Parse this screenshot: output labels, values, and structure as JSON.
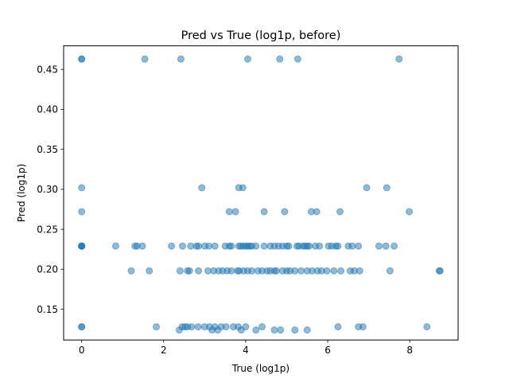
{
  "chart_data": {
    "type": "scatter",
    "title": "Pred vs True (log1p, before)",
    "xlabel": "True (log1p)",
    "ylabel": "Pred (log1p)",
    "xlim": [
      -0.44,
      9.18
    ],
    "ylim": [
      0.1115,
      0.4795
    ],
    "x_ticks": [
      0,
      2,
      4,
      6,
      8
    ],
    "x_tick_labels": [
      "0",
      "2",
      "4",
      "6",
      "8"
    ],
    "y_ticks": [
      0.15,
      0.2,
      0.25,
      0.3,
      0.35,
      0.4,
      0.45
    ],
    "y_tick_labels": [
      "0.15",
      "0.20",
      "0.25",
      "0.30",
      "0.35",
      "0.40",
      "0.45"
    ],
    "grid": false,
    "marker_color": "#1f77b4",
    "marker_alpha": 0.5,
    "series": [
      {
        "points": [
          [
            0,
            0.463
          ],
          [
            0,
            0.463
          ],
          [
            1.54,
            0.463
          ],
          [
            2.42,
            0.463
          ],
          [
            4.05,
            0.463
          ],
          [
            4.83,
            0.463
          ],
          [
            5.27,
            0.463
          ],
          [
            7.74,
            0.463
          ],
          [
            0,
            0.302
          ],
          [
            2.93,
            0.302
          ],
          [
            3.83,
            0.302
          ],
          [
            3.93,
            0.302
          ],
          [
            6.95,
            0.302
          ],
          [
            7.44,
            0.302
          ],
          [
            0,
            0.272
          ],
          [
            3.6,
            0.272
          ],
          [
            3.75,
            0.272
          ],
          [
            4.45,
            0.272
          ],
          [
            4.95,
            0.272
          ],
          [
            5.6,
            0.272
          ],
          [
            5.73,
            0.272
          ],
          [
            6.3,
            0.272
          ],
          [
            7.99,
            0.272
          ],
          [
            0,
            0.229
          ],
          [
            0,
            0.229
          ],
          [
            0,
            0.229
          ],
          [
            0,
            0.229
          ],
          [
            0.83,
            0.229
          ],
          [
            1.3,
            0.229
          ],
          [
            1.35,
            0.229
          ],
          [
            1.48,
            0.229
          ],
          [
            2.19,
            0.229
          ],
          [
            2.46,
            0.229
          ],
          [
            2.66,
            0.229
          ],
          [
            2.8,
            0.229
          ],
          [
            2.85,
            0.229
          ],
          [
            3.0,
            0.229
          ],
          [
            3.1,
            0.229
          ],
          [
            3.25,
            0.229
          ],
          [
            3.5,
            0.229
          ],
          [
            3.6,
            0.229
          ],
          [
            3.65,
            0.229
          ],
          [
            3.83,
            0.229
          ],
          [
            3.88,
            0.229
          ],
          [
            3.94,
            0.229
          ],
          [
            4.0,
            0.229
          ],
          [
            4.05,
            0.229
          ],
          [
            4.1,
            0.229
          ],
          [
            4.15,
            0.229
          ],
          [
            4.25,
            0.229
          ],
          [
            4.45,
            0.229
          ],
          [
            4.6,
            0.229
          ],
          [
            4.7,
            0.229
          ],
          [
            4.8,
            0.229
          ],
          [
            4.9,
            0.229
          ],
          [
            5.0,
            0.229
          ],
          [
            5.05,
            0.229
          ],
          [
            5.25,
            0.229
          ],
          [
            5.3,
            0.229
          ],
          [
            5.4,
            0.229
          ],
          [
            5.45,
            0.229
          ],
          [
            5.5,
            0.229
          ],
          [
            5.55,
            0.229
          ],
          [
            5.7,
            0.229
          ],
          [
            5.8,
            0.229
          ],
          [
            6.02,
            0.229
          ],
          [
            6.1,
            0.229
          ],
          [
            6.2,
            0.229
          ],
          [
            6.25,
            0.229
          ],
          [
            6.5,
            0.229
          ],
          [
            6.6,
            0.229
          ],
          [
            6.75,
            0.229
          ],
          [
            7.25,
            0.229
          ],
          [
            7.42,
            0.229
          ],
          [
            7.62,
            0.229
          ],
          [
            1.21,
            0.198
          ],
          [
            1.65,
            0.198
          ],
          [
            2.4,
            0.198
          ],
          [
            2.58,
            0.198
          ],
          [
            2.63,
            0.198
          ],
          [
            2.85,
            0.198
          ],
          [
            3.08,
            0.198
          ],
          [
            3.22,
            0.198
          ],
          [
            3.34,
            0.198
          ],
          [
            3.44,
            0.198
          ],
          [
            3.55,
            0.198
          ],
          [
            3.65,
            0.198
          ],
          [
            3.8,
            0.198
          ],
          [
            3.84,
            0.198
          ],
          [
            3.95,
            0.198
          ],
          [
            4.05,
            0.198
          ],
          [
            4.15,
            0.198
          ],
          [
            4.3,
            0.198
          ],
          [
            4.4,
            0.198
          ],
          [
            4.52,
            0.198
          ],
          [
            4.6,
            0.198
          ],
          [
            4.7,
            0.198
          ],
          [
            4.75,
            0.198
          ],
          [
            4.9,
            0.198
          ],
          [
            5.0,
            0.198
          ],
          [
            5.08,
            0.198
          ],
          [
            5.2,
            0.198
          ],
          [
            5.35,
            0.198
          ],
          [
            5.5,
            0.198
          ],
          [
            5.62,
            0.198
          ],
          [
            5.75,
            0.198
          ],
          [
            5.85,
            0.198
          ],
          [
            5.98,
            0.198
          ],
          [
            6.15,
            0.198
          ],
          [
            6.32,
            0.198
          ],
          [
            6.55,
            0.198
          ],
          [
            6.65,
            0.198
          ],
          [
            6.78,
            0.198
          ],
          [
            7.52,
            0.198
          ],
          [
            8.72,
            0.198
          ],
          [
            8.74,
            0.198
          ],
          [
            0,
            0.128
          ],
          [
            0,
            0.128
          ],
          [
            1.82,
            0.128
          ],
          [
            2.38,
            0.124
          ],
          [
            2.45,
            0.128
          ],
          [
            2.52,
            0.128
          ],
          [
            2.58,
            0.128
          ],
          [
            2.68,
            0.128
          ],
          [
            2.84,
            0.128
          ],
          [
            3.0,
            0.128
          ],
          [
            3.12,
            0.128
          ],
          [
            3.18,
            0.124
          ],
          [
            3.25,
            0.128
          ],
          [
            3.32,
            0.124
          ],
          [
            3.4,
            0.128
          ],
          [
            3.52,
            0.128
          ],
          [
            3.7,
            0.128
          ],
          [
            3.82,
            0.128
          ],
          [
            3.89,
            0.124
          ],
          [
            4.0,
            0.128
          ],
          [
            4.25,
            0.124
          ],
          [
            4.4,
            0.128
          ],
          [
            4.7,
            0.124
          ],
          [
            4.85,
            0.124
          ],
          [
            5.2,
            0.124
          ],
          [
            5.5,
            0.124
          ],
          [
            6.25,
            0.128
          ],
          [
            6.75,
            0.128
          ],
          [
            6.86,
            0.128
          ],
          [
            8.42,
            0.128
          ]
        ]
      }
    ]
  }
}
